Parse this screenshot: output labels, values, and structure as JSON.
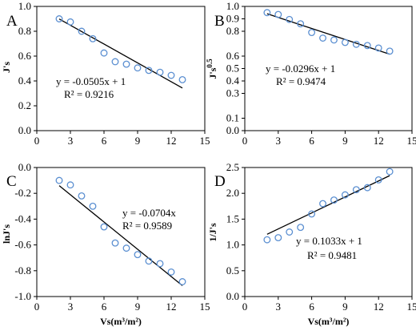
{
  "chart_data": [
    {
      "type": "scatter",
      "panel_label": "A",
      "ylabel": "J's",
      "xlabel": "",
      "xlim": [
        0,
        15
      ],
      "ylim": [
        0,
        1.0
      ],
      "xticks": [
        "0",
        "3",
        "6",
        "9",
        "12",
        "15"
      ],
      "yticks": [
        "0.0",
        "0.2",
        "0.4",
        "0.6",
        "0.8",
        "1.0"
      ],
      "series": [
        {
          "x": [
            2,
            3,
            4,
            5,
            6,
            7,
            8,
            9,
            10,
            11,
            12,
            13
          ],
          "y": [
            0.9,
            0.875,
            0.8,
            0.74,
            0.625,
            0.555,
            0.535,
            0.505,
            0.485,
            0.47,
            0.445,
            0.41
          ]
        }
      ],
      "trendline": {
        "slope": -0.0505,
        "intercept": 1,
        "x_range": [
          2,
          13
        ]
      },
      "equation": "y = -0.0505x + 1",
      "r2": "R² = 0.9216"
    },
    {
      "type": "scatter",
      "panel_label": "B",
      "ylabel": "J's^0.5",
      "ylabel_base": "J's",
      "ylabel_sup": "0.5",
      "xlabel": "",
      "xlim": [
        0,
        15
      ],
      "ylim": [
        0,
        1.0
      ],
      "xticks": [
        "0",
        "3",
        "6",
        "9",
        "12",
        "15"
      ],
      "yticks": [
        "0.0",
        "0.1",
        "0.3",
        "0.4",
        "0.5",
        "0.6",
        "0.8",
        "0.9",
        "1.0"
      ],
      "ytick_values": [
        0.0,
        0.1,
        0.3,
        0.4,
        0.5,
        0.6,
        0.8,
        0.9,
        1.0
      ],
      "series": [
        {
          "x": [
            2,
            3,
            4,
            5,
            6,
            7,
            8,
            9,
            10,
            11,
            12,
            13
          ],
          "y": [
            0.95,
            0.935,
            0.895,
            0.86,
            0.79,
            0.745,
            0.73,
            0.71,
            0.695,
            0.685,
            0.665,
            0.64
          ]
        }
      ],
      "trendline": {
        "slope": -0.0296,
        "intercept": 1,
        "x_range": [
          2,
          13
        ]
      },
      "equation": "y = -0.0296x + 1",
      "r2": "R² = 0.9474"
    },
    {
      "type": "scatter",
      "panel_label": "C",
      "ylabel": "lnJ's",
      "xlabel": "Vs(m³/m²)",
      "xlim": [
        0,
        15
      ],
      "ylim": [
        -1.0,
        0.0
      ],
      "xticks": [
        "0",
        "3",
        "6",
        "9",
        "12",
        "15"
      ],
      "yticks": [
        "-1.0",
        "-0.8",
        "-0.6",
        "-0.4",
        "-0.2",
        "0.0"
      ],
      "series": [
        {
          "x": [
            2,
            3,
            4,
            5,
            6,
            7,
            8,
            9,
            10,
            11,
            12,
            13
          ],
          "y": [
            -0.1,
            -0.135,
            -0.22,
            -0.3,
            -0.46,
            -0.585,
            -0.625,
            -0.675,
            -0.725,
            -0.745,
            -0.81,
            -0.885
          ]
        }
      ],
      "trendline": {
        "slope": -0.0704,
        "intercept": 0,
        "x_range": [
          2,
          13
        ]
      },
      "equation": "y = -0.0704x",
      "r2": "R² = 0.9589"
    },
    {
      "type": "scatter",
      "panel_label": "D",
      "ylabel": "1/J's",
      "xlabel": "Vs(m³/m²)",
      "xlim": [
        0,
        15
      ],
      "ylim": [
        0,
        2.5
      ],
      "xticks": [
        "0",
        "3",
        "6",
        "9",
        "12",
        "15"
      ],
      "yticks": [
        "0.0",
        "0.5",
        "1.0",
        "1.5",
        "2.0",
        "2.5"
      ],
      "series": [
        {
          "x": [
            2,
            3,
            4,
            5,
            6,
            7,
            8,
            9,
            10,
            11,
            12,
            13
          ],
          "y": [
            1.1,
            1.14,
            1.25,
            1.34,
            1.6,
            1.8,
            1.87,
            1.97,
            2.07,
            2.11,
            2.26,
            2.42
          ]
        }
      ],
      "trendline": {
        "slope": 0.1033,
        "intercept": 1,
        "x_range": [
          2,
          13
        ]
      },
      "equation": "y = 0.1033x + 1",
      "r2": "R² = 0.9481"
    }
  ],
  "colors": {
    "marker": "#5b8fd1",
    "line": "#000000",
    "axis": "#000000"
  }
}
